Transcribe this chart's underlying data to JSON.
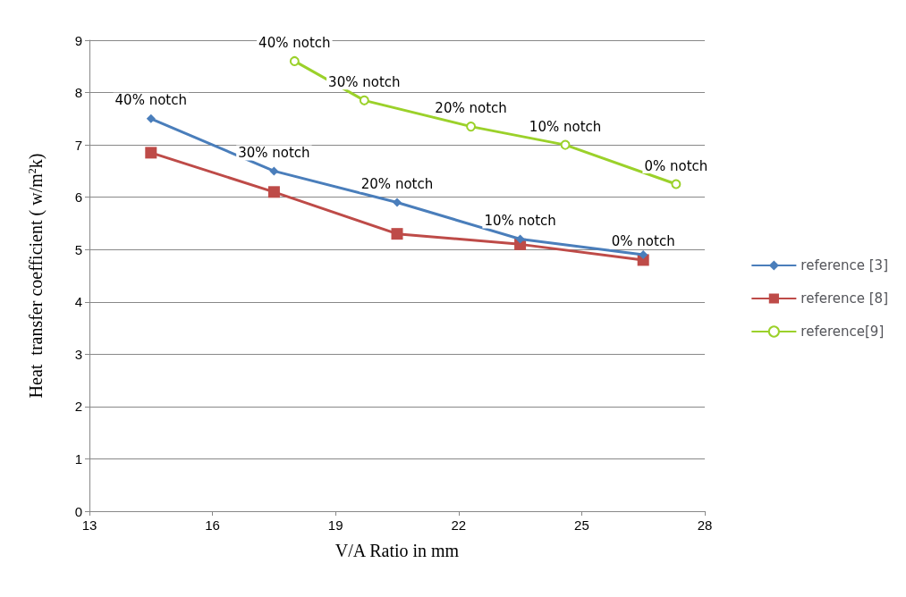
{
  "chart_data": {
    "type": "line",
    "xlabel": "V/A Ratio in mm",
    "ylabel": "Heat  transfer coefficient ( w/m$^{2}$k)",
    "xlim": [
      13,
      28
    ],
    "xticks": [
      13,
      16,
      19,
      22,
      25,
      28
    ],
    "ylim": [
      0,
      9
    ],
    "yticks": [
      0,
      1,
      2,
      3,
      4,
      5,
      6,
      7,
      8,
      9
    ],
    "grid": "y",
    "legend": "right",
    "series": [
      {
        "name": "reference [3]",
        "color": "#4a7ebb",
        "marker": "diamond",
        "x": [
          14.5,
          17.5,
          20.5,
          23.5,
          26.5
        ],
        "values": [
          7.5,
          6.5,
          5.9,
          5.2,
          4.9
        ]
      },
      {
        "name": "reference [8]",
        "color": "#be4b48",
        "marker": "square",
        "x": [
          14.5,
          17.5,
          20.5,
          23.5,
          26.5
        ],
        "values": [
          6.85,
          6.1,
          5.3,
          5.1,
          4.8
        ]
      },
      {
        "name": "reference[9]",
        "color": "#9bd12a",
        "marker": "circle",
        "x": [
          18,
          19.7,
          22.3,
          24.6,
          27.3
        ],
        "values": [
          8.6,
          7.85,
          7.35,
          7.0,
          6.25
        ]
      }
    ],
    "annotations": [
      {
        "text": "40% notch",
        "x": 14.5,
        "y": 7.5
      },
      {
        "text": "30% notch",
        "x": 17.5,
        "y": 6.5
      },
      {
        "text": "20% notch",
        "x": 20.5,
        "y": 5.9
      },
      {
        "text": "10% notch",
        "x": 23.5,
        "y": 5.2
      },
      {
        "text": "0% notch",
        "x": 26.5,
        "y": 4.8
      },
      {
        "text": "40% notch",
        "x": 18,
        "y": 8.6
      },
      {
        "text": "30% notch",
        "x": 19.7,
        "y": 7.85
      },
      {
        "text": "20% notch",
        "x": 22.3,
        "y": 7.35
      },
      {
        "text": "10% notch",
        "x": 24.6,
        "y": 7.0
      },
      {
        "text": "0% notch",
        "x": 27.3,
        "y": 6.25
      }
    ]
  }
}
